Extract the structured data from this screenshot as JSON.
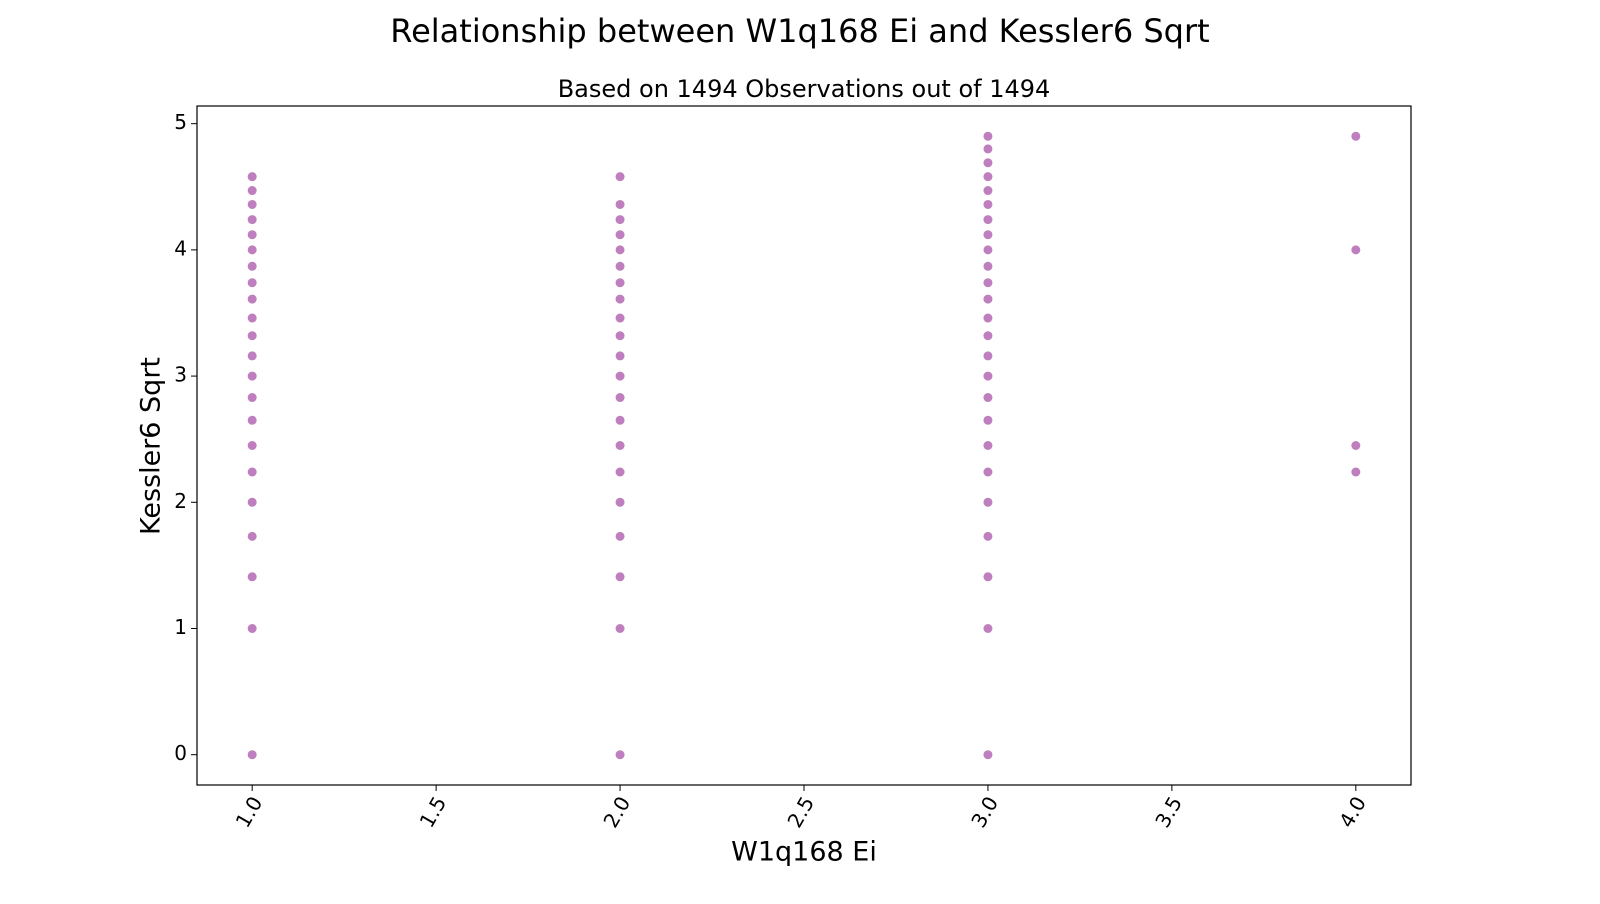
{
  "chart_data": {
    "type": "scatter",
    "title": "Relationship between W1q168 Ei and Kessler6 Sqrt",
    "subtitle": "Based on 1494 Observations out of 1494",
    "x_label": "W1q168 Ei",
    "y_label": "Kessler6 Sqrt",
    "series": [
      {
        "color": "#800080",
        "alpha": 0.5,
        "x": [
          1,
          1,
          1,
          1,
          1,
          1,
          1,
          1,
          1,
          1,
          1,
          1,
          1,
          1,
          1,
          1,
          1,
          1,
          1,
          1,
          1,
          1,
          2,
          2,
          2,
          2,
          2,
          2,
          2,
          2,
          2,
          2,
          2,
          2,
          2,
          2,
          2,
          2,
          2,
          2,
          2,
          2,
          2,
          3,
          3,
          3,
          3,
          3,
          3,
          3,
          3,
          3,
          3,
          3,
          3,
          3,
          3,
          3,
          3,
          3,
          3,
          3,
          3,
          3,
          3,
          3,
          3,
          3,
          4,
          4,
          4,
          4
        ],
        "values": [
          0,
          1,
          1.41,
          1.73,
          2,
          2.24,
          2.45,
          2.65,
          2.83,
          3,
          3.16,
          3.32,
          3.46,
          3.61,
          3.74,
          3.87,
          4,
          4.12,
          4.24,
          4.36,
          4.47,
          4.58,
          0,
          1,
          1.41,
          1.73,
          2,
          2.24,
          2.45,
          2.65,
          2.83,
          3,
          3.16,
          3.32,
          3.46,
          3.61,
          3.74,
          3.87,
          4,
          4.12,
          4.24,
          4.36,
          4.58,
          0,
          1,
          1.41,
          1.73,
          2,
          2.24,
          2.45,
          2.65,
          2.83,
          3,
          3.16,
          3.32,
          3.46,
          3.61,
          3.74,
          3.87,
          4,
          4.12,
          4.24,
          4.36,
          4.47,
          4.58,
          4.69,
          4.8,
          4.9,
          2.24,
          2.45,
          4,
          4.9
        ]
      }
    ],
    "xlim": [
      0.85,
      4.15
    ],
    "ylim": [
      -0.24,
      5.14
    ],
    "xticks": [
      {
        "value": 1,
        "label": "1.0"
      },
      1.5,
      {
        "value": 2,
        "label": "2.0"
      },
      2.5,
      {
        "value": 3,
        "label": "3.0"
      },
      3.5,
      {
        "value": 4,
        "label": "4.0"
      }
    ],
    "yticks": [
      0,
      1,
      2,
      3,
      4,
      5
    ],
    "grid": false
  }
}
